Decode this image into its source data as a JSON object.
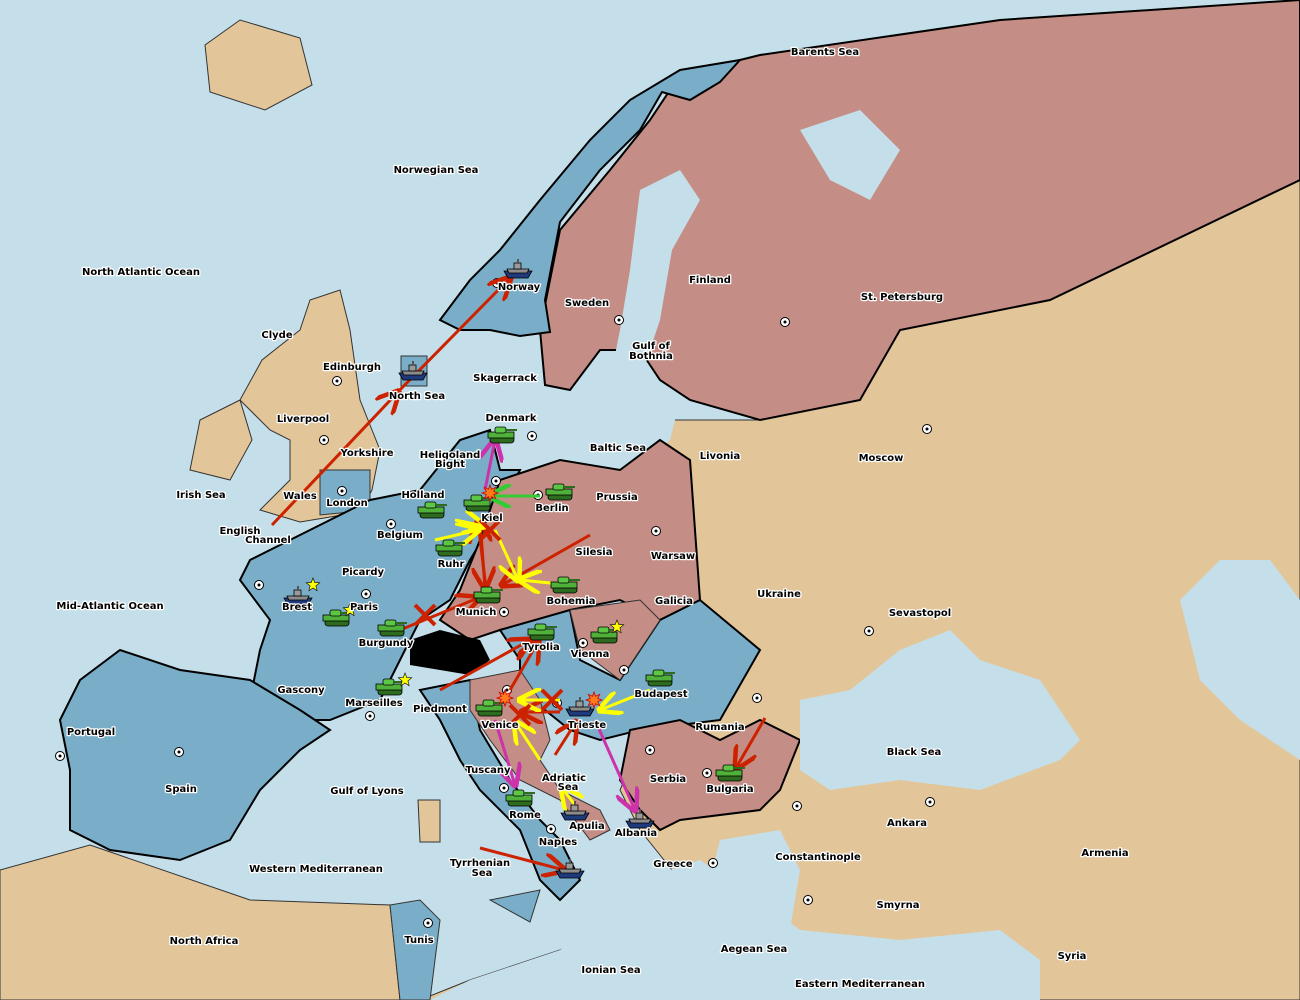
{
  "colors": {
    "sea": "#c5dfea",
    "neutral_land": "#e2c599",
    "blue_power": "#7aaec8",
    "red_power": "#c48d85",
    "switzerland": "#000000",
    "order_move": "#cc2200",
    "order_support": "#ffff00",
    "order_convoy_retreat": "#cc33aa",
    "order_other": "#33cc33"
  },
  "regions": [
    "Barents Sea",
    "Norwegian Sea",
    "North Atlantic Ocean",
    "Clyde",
    "Edinburgh",
    "Norway",
    "Sweden",
    "Finland",
    "St. Petersburg",
    "Gulf of",
    "Bothnia",
    "Skagerrack",
    "North Sea",
    "Liverpool",
    "Denmark",
    "Yorkshire",
    "Heligoland",
    "Bight",
    "Baltic Sea",
    "Livonia",
    "Moscow",
    "Irish Sea",
    "Wales",
    "Holland",
    "London",
    "Berlin",
    "Prussia",
    "Kiel",
    "English",
    "Channel",
    "Belgium",
    "Silesia",
    "Warsaw",
    "Ruhr",
    "Picardy",
    "Ukraine",
    "Bohemia",
    "Galicia",
    "Brest",
    "Paris",
    "Mid-Atlantic Ocean",
    "Sevastopol",
    "Munich",
    "Burgundy",
    "Tyrolia",
    "Vienna",
    "Gascony",
    "Budapest",
    "Marseilles",
    "Piedmont",
    "Portugal",
    "Venice",
    "Trieste",
    "Rumania",
    "Black Sea",
    "Tuscany",
    "Adriatic",
    "Sea",
    "Serbia",
    "Spain",
    "Gulf of Lyons",
    "Bulgaria",
    "Rome",
    "Apulia",
    "Ankara",
    "Albania",
    "Naples",
    "Constantinople",
    "Armenia",
    "Greece",
    "Tyrrhenian",
    "Sea",
    "Western Mediterranean",
    "Smyrna",
    "North Africa",
    "Tunis",
    "Aegean Sea",
    "Syria",
    "Ionian Sea",
    "Eastern Mediterranean"
  ],
  "units": [
    {
      "type": "fleet",
      "location": "Norway"
    },
    {
      "type": "fleet",
      "location": "North Sea"
    },
    {
      "type": "army",
      "location": "Denmark"
    },
    {
      "type": "army",
      "location": "Kiel"
    },
    {
      "type": "army",
      "location": "Berlin"
    },
    {
      "type": "army",
      "location": "Holland"
    },
    {
      "type": "army",
      "location": "Ruhr"
    },
    {
      "type": "army",
      "location": "Bohemia"
    },
    {
      "type": "army",
      "location": "Munich"
    },
    {
      "type": "army",
      "location": "Tyrolia"
    },
    {
      "type": "army",
      "location": "Vienna"
    },
    {
      "type": "army",
      "location": "Budapest"
    },
    {
      "type": "army",
      "location": "Burgundy"
    },
    {
      "type": "army",
      "location": "Paris"
    },
    {
      "type": "fleet",
      "location": "Brest"
    },
    {
      "type": "army",
      "location": "Marseilles"
    },
    {
      "type": "army",
      "location": "Venice"
    },
    {
      "type": "fleet",
      "location": "Trieste"
    },
    {
      "type": "army",
      "location": "Rome"
    },
    {
      "type": "fleet",
      "location": "Apulia"
    },
    {
      "type": "fleet",
      "location": "Albania"
    },
    {
      "type": "fleet",
      "location": "Naples"
    },
    {
      "type": "army",
      "location": "Bulgaria"
    }
  ],
  "markers": {
    "stars": [
      "Brest",
      "Paris",
      "Vienna",
      "Marseilles"
    ],
    "dislodged": [
      "Kiel",
      "Venice",
      "Trieste"
    ]
  }
}
